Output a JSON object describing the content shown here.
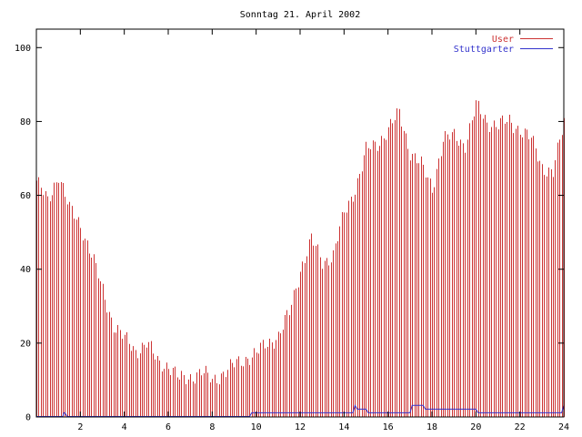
{
  "chart_data": {
    "type": "bar",
    "title": "Sonntag 21. April 2002",
    "xlabel": "",
    "ylabel": "",
    "xlim": [
      0,
      24
    ],
    "ylim": [
      0,
      105
    ],
    "x_ticks": [
      2,
      4,
      6,
      8,
      10,
      12,
      14,
      16,
      18,
      20,
      22,
      24
    ],
    "y_ticks": [
      0,
      20,
      40,
      60,
      80,
      100
    ],
    "grid": false,
    "legend": "top-right",
    "series": [
      {
        "name": "User",
        "color": "#cc3333",
        "style": "impulses",
        "x": [
          0.0,
          0.5,
          1.0,
          1.5,
          2.0,
          2.5,
          3.0,
          3.5,
          4.0,
          4.5,
          5.0,
          5.5,
          6.0,
          6.5,
          7.0,
          7.5,
          8.0,
          8.5,
          9.0,
          9.5,
          10.0,
          10.5,
          11.0,
          11.5,
          12.0,
          12.5,
          13.0,
          13.5,
          14.0,
          14.5,
          15.0,
          15.5,
          16.0,
          16.5,
          17.0,
          17.5,
          18.0,
          18.5,
          19.0,
          19.5,
          20.0,
          20.5,
          21.0,
          21.5,
          22.0,
          22.5,
          23.0,
          23.5,
          24.0
        ],
        "values": [
          64,
          58,
          66,
          56,
          52,
          44,
          34,
          25,
          21,
          18,
          20,
          15,
          14,
          10,
          11,
          12,
          10,
          12,
          14,
          16,
          17,
          20,
          22,
          28,
          40,
          48,
          42,
          44,
          55,
          62,
          72,
          74,
          78,
          82,
          72,
          68,
          62,
          75,
          76,
          74,
          84,
          80,
          79,
          80,
          78,
          75,
          68,
          66,
          80
        ]
      },
      {
        "name": "Stuttgarter",
        "color": "#3333cc",
        "style": "line",
        "x": [
          0.0,
          1.2,
          1.25,
          1.3,
          1.4,
          9.7,
          9.8,
          14.4,
          14.5,
          14.6,
          15.0,
          15.1,
          17.0,
          17.1,
          17.6,
          17.7,
          20.0,
          20.1,
          23.9,
          24.0
        ],
        "values": [
          0,
          0,
          1,
          1,
          0,
          0,
          1,
          1,
          3,
          2,
          2,
          1,
          1,
          3,
          3,
          2,
          2,
          1,
          1,
          3
        ]
      }
    ]
  }
}
